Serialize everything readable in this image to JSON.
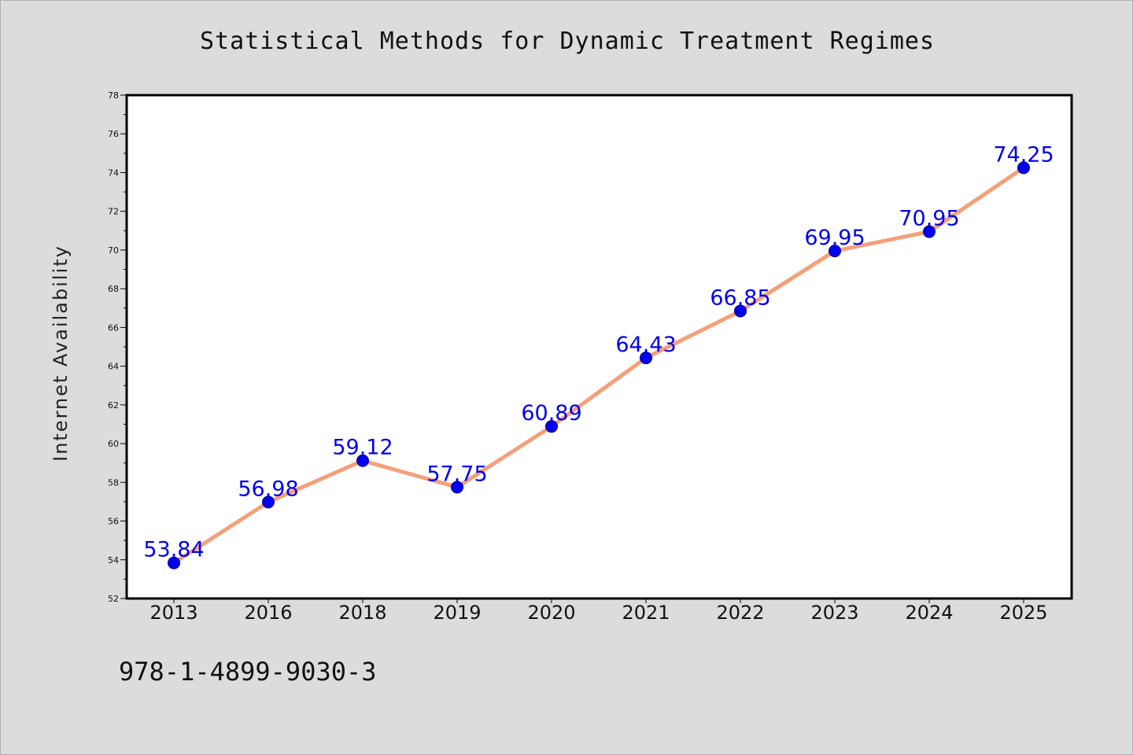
{
  "chart_data": {
    "type": "line",
    "title": "Statistical Methods for Dynamic Treatment Regimes",
    "xlabel": "",
    "ylabel": "Internet Availability",
    "categories": [
      "2013",
      "2016",
      "2018",
      "2019",
      "2020",
      "2021",
      "2022",
      "2023",
      "2024",
      "2025"
    ],
    "series": [
      {
        "values": [
          53.84,
          56.98,
          59.12,
          57.75,
          60.89,
          64.43,
          66.85,
          69.95,
          70.95,
          74.25
        ],
        "line_color": "#f4a07a",
        "marker_color": "#0000ee"
      }
    ],
    "data_labels": [
      "53.84",
      "56.98",
      "59.12",
      "57.75",
      "60.89",
      "64.43",
      "66.85",
      "69.95",
      "70.95",
      "74.25"
    ],
    "ylim": [
      52,
      78
    ],
    "y_ticks": [
      "52",
      "54",
      "56",
      "58",
      "60",
      "62",
      "64",
      "66",
      "68",
      "70",
      "72",
      "74",
      "76",
      "78"
    ],
    "grid": false,
    "legend": "none"
  },
  "footer": {
    "isbn": "978-1-4899-9030-3"
  },
  "colors": {
    "background": "#dcdcdc",
    "plot_background": "#ffffff"
  }
}
